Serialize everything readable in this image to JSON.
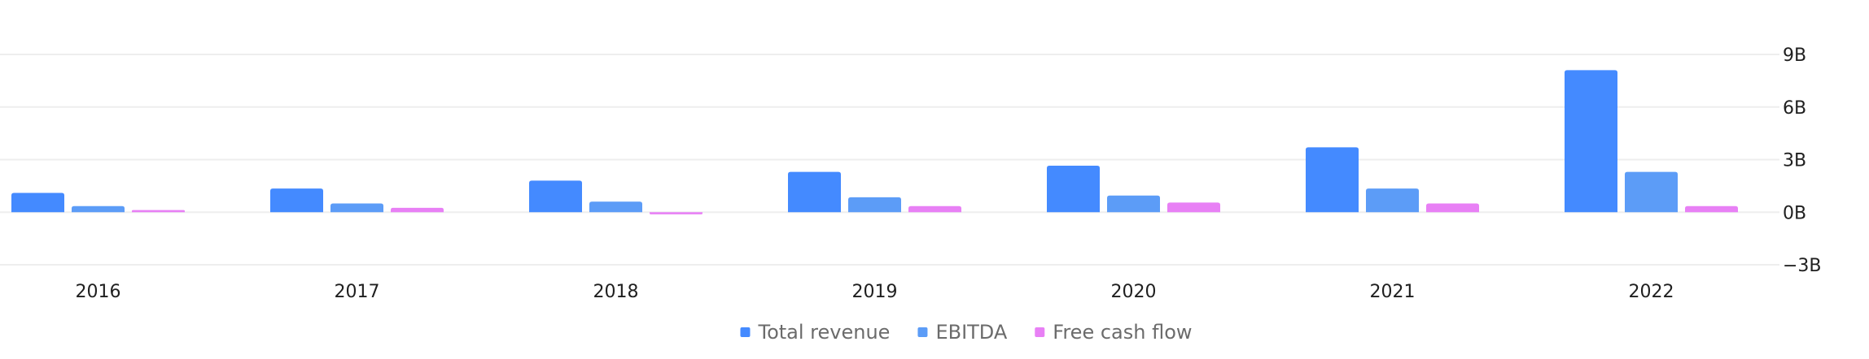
{
  "chart_data": {
    "type": "bar",
    "title": "",
    "xlabel": "",
    "ylabel": "",
    "categories": [
      "2016",
      "2017",
      "2018",
      "2019",
      "2020",
      "2021",
      "2022"
    ],
    "series": [
      {
        "name": "Total revenue",
        "color": "#448aff",
        "values": [
          1.1,
          1.35,
          1.8,
          2.3,
          2.65,
          3.7,
          8.1
        ]
      },
      {
        "name": "EBITDA",
        "color": "#5c9cf7",
        "values": [
          0.35,
          0.5,
          0.6,
          0.85,
          0.95,
          1.35,
          2.3
        ]
      },
      {
        "name": "Free cash flow",
        "color": "#e880f5",
        "values": [
          0.12,
          0.25,
          -0.12,
          0.35,
          0.55,
          0.5,
          0.35
        ]
      }
    ],
    "yticks": [
      9,
      6,
      3,
      0,
      -3
    ],
    "ytick_labels": [
      "9B",
      "6B",
      "3B",
      "0B",
      "−3B"
    ],
    "ylim": [
      -3,
      9
    ],
    "grid": true,
    "legend_position": "bottom-center"
  }
}
